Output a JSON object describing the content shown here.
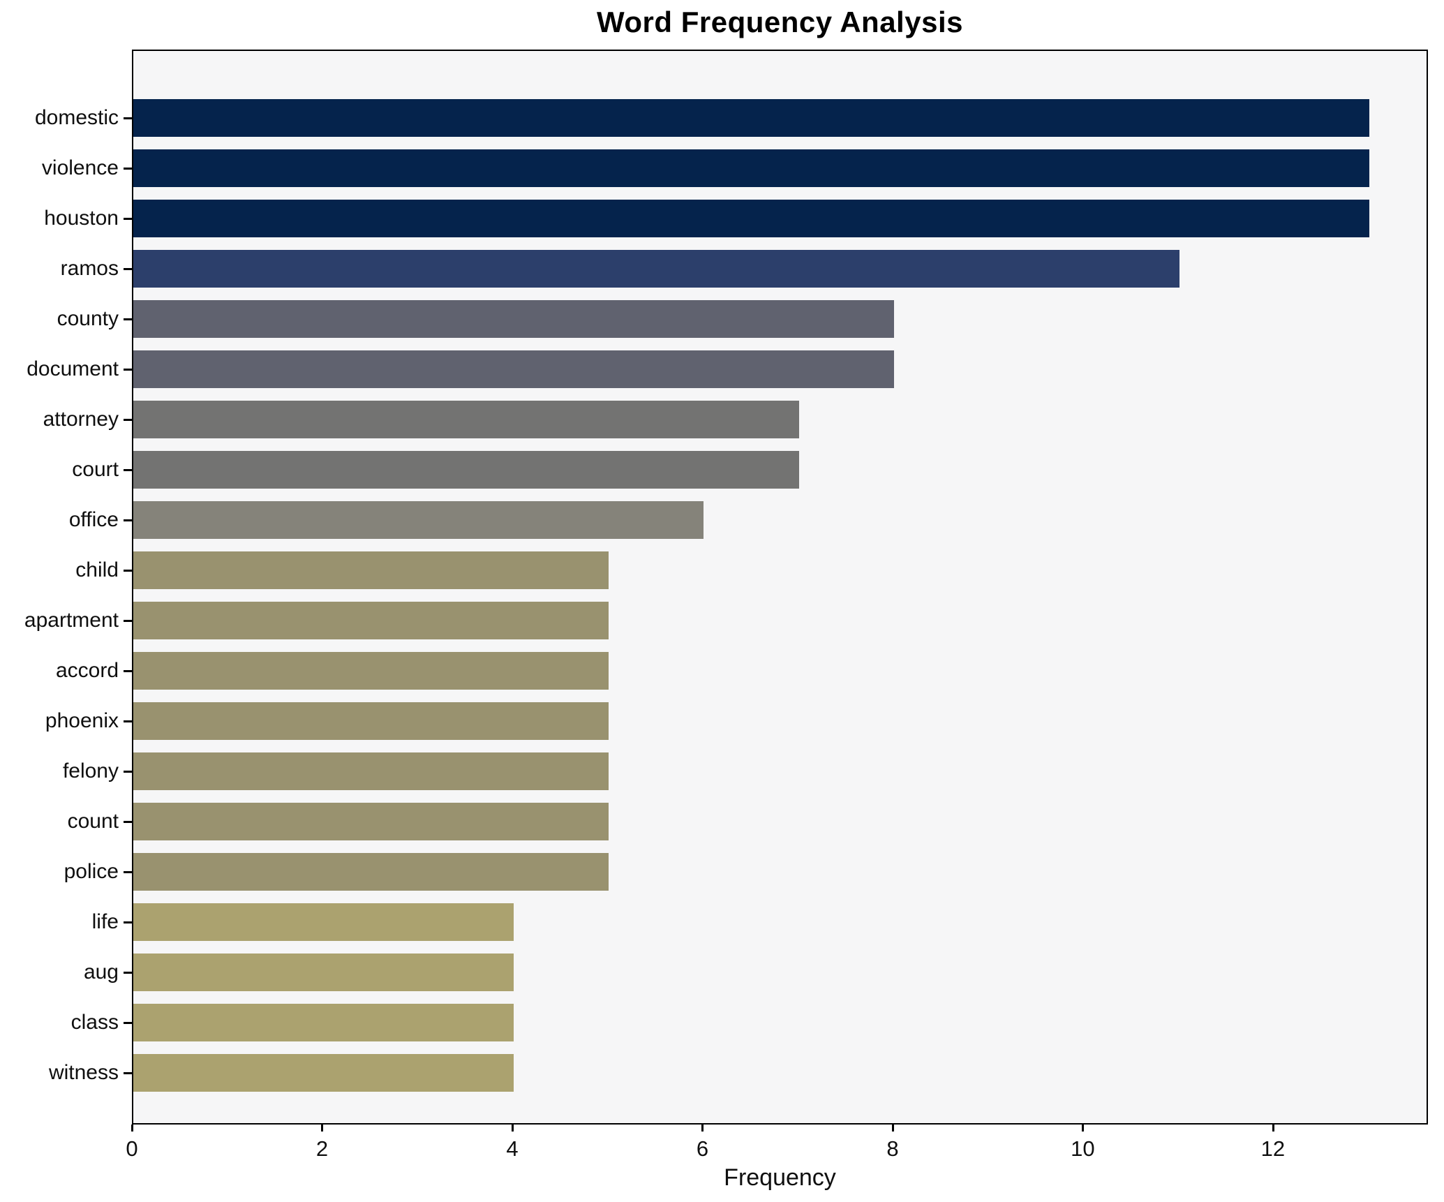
{
  "title": "Word Frequency Analysis",
  "chart_data": {
    "type": "bar",
    "orientation": "horizontal",
    "title": "Word Frequency Analysis",
    "xlabel": "Frequency",
    "ylabel": "",
    "categories": [
      "domestic",
      "violence",
      "houston",
      "ramos",
      "county",
      "document",
      "attorney",
      "court",
      "office",
      "child",
      "apartment",
      "accord",
      "phoenix",
      "felony",
      "count",
      "police",
      "life",
      "aug",
      "class",
      "witness"
    ],
    "values": [
      13,
      13,
      13,
      11,
      8,
      8,
      7,
      7,
      6,
      5,
      5,
      5,
      5,
      5,
      5,
      5,
      4,
      4,
      4,
      4
    ],
    "bar_colors": [
      "#05234c",
      "#05234c",
      "#05234c",
      "#2c3f6b",
      "#60626f",
      "#60626f",
      "#737372",
      "#737372",
      "#85837a",
      "#99926f",
      "#99926f",
      "#99926f",
      "#99926f",
      "#99926f",
      "#99926f",
      "#99926f",
      "#aba26f",
      "#aba26f",
      "#aba26f",
      "#aba26f"
    ],
    "xlim": [
      0,
      13.63
    ],
    "x_ticks": [
      0,
      2,
      4,
      6,
      8,
      10,
      12
    ],
    "grid": false,
    "legend": false,
    "plot_bg": "#f6f6f7",
    "figure_bg": "#ffffff",
    "spine_color": "#000000",
    "text_color": "#0f0f0f"
  }
}
